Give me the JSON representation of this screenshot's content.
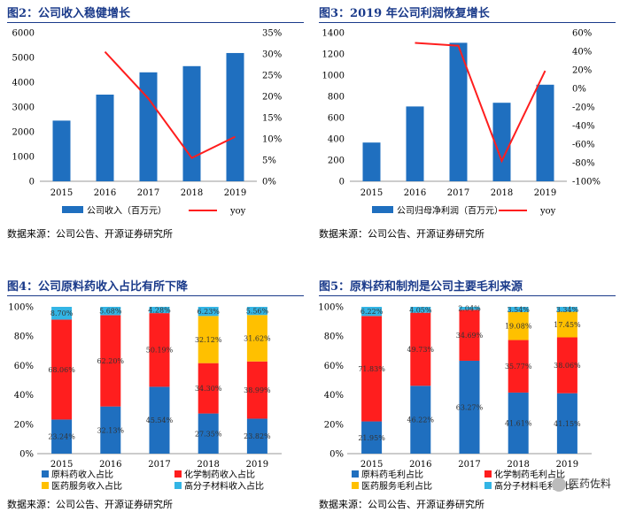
{
  "panels": [
    {
      "title": "图2：公司收入稳健增长",
      "source": "数据来源：公司公告、开源证券研究所"
    },
    {
      "title": "图3：2019 年公司利润恢复增长",
      "source": "数据来源：公司公告、开源证券研究所"
    },
    {
      "title": "图4：公司原料药收入占比有所下降",
      "source": "数据来源：公司公告、开源证券研究所"
    },
    {
      "title": "图5：原料药和制剂是公司主要毛利来源",
      "source": "数据来源：公司公告、开源证券研究所"
    }
  ],
  "watermark": "医药佐料",
  "colors": {
    "blue": "#1f6fbf",
    "red": "#ff1e1e",
    "yellow": "#ffc000",
    "cyan": "#33b5e5"
  },
  "chart_data": [
    {
      "type": "bar",
      "categories": [
        "2015",
        "2016",
        "2017",
        "2018",
        "2019"
      ],
      "series": [
        {
          "name": "公司收入（百万元）",
          "values": [
            2450,
            3500,
            4400,
            4650,
            5180
          ],
          "axis": "left",
          "kind": "bar"
        },
        {
          "name": "yoy",
          "values": [
            null,
            30.5,
            19.5,
            5.5,
            10.5
          ],
          "axis": "right",
          "kind": "line"
        }
      ],
      "y_left": {
        "ticks": [
          "0",
          "1000",
          "2000",
          "3000",
          "4000",
          "5000",
          "6000"
        ],
        "lim": [
          0,
          6000
        ]
      },
      "y_right": {
        "ticks": [
          "0%",
          "5%",
          "10%",
          "15%",
          "20%",
          "25%",
          "30%",
          "35%"
        ],
        "lim": [
          0,
          35
        ]
      },
      "legend": [
        "公司收入（百万元）",
        "yoy"
      ]
    },
    {
      "type": "bar",
      "categories": [
        "2015",
        "2016",
        "2017",
        "2018",
        "2019"
      ],
      "series": [
        {
          "name": "公司归母净利润（百万元）",
          "values": [
            365,
            705,
            1305,
            740,
            910
          ],
          "axis": "left",
          "kind": "bar"
        },
        {
          "name": "yoy",
          "values": [
            null,
            49,
            46,
            -78,
            19
          ],
          "axis": "right",
          "kind": "line"
        }
      ],
      "y_left": {
        "ticks": [
          "0",
          "200",
          "400",
          "600",
          "800",
          "1000",
          "1200",
          "1400"
        ],
        "lim": [
          0,
          1400
        ]
      },
      "y_right": {
        "ticks": [
          "-100%",
          "-80%",
          "-60%",
          "-40%",
          "-20%",
          "0%",
          "20%",
          "40%",
          "60%"
        ],
        "lim": [
          -100,
          60
        ]
      },
      "legend": [
        "公司归母净利润（百万元）",
        "yoy"
      ]
    },
    {
      "type": "stacked-bar",
      "categories": [
        "2015",
        "2016",
        "2017",
        "2018",
        "2019"
      ],
      "series": [
        {
          "name": "原料药收入占比",
          "color": "blue",
          "values": [
            23.24,
            32.13,
            45.54,
            27.35,
            23.82
          ],
          "labels": [
            "23.24%",
            "32.13%",
            "45.54%",
            "27.35%",
            "23.82%"
          ]
        },
        {
          "name": "化学制药收入占比",
          "color": "red",
          "values": [
            68.06,
            62.2,
            50.19,
            34.3,
            38.99
          ],
          "labels": [
            "68.06%",
            "62.20%",
            "50.19%",
            "34.30%",
            "38.99%"
          ]
        },
        {
          "name": "医药服务收入占比",
          "color": "yellow",
          "values": [
            0,
            0,
            0,
            32.12,
            31.62
          ],
          "labels": [
            "",
            "",
            "",
            "32.12%",
            "31.62%"
          ]
        },
        {
          "name": "高分子材料收入占比",
          "color": "cyan",
          "values": [
            8.7,
            5.68,
            4.28,
            6.23,
            5.56
          ],
          "labels": [
            "8.70%",
            "5.68%",
            "4.28%",
            "6.23%",
            "5.56%"
          ]
        }
      ],
      "y_ticks": [
        "0%",
        "20%",
        "40%",
        "60%",
        "80%",
        "100%"
      ],
      "ylim": [
        0,
        100
      ]
    },
    {
      "type": "stacked-bar",
      "categories": [
        "2015",
        "2016",
        "2017",
        "2018",
        "2019"
      ],
      "series": [
        {
          "name": "原料药毛利占比",
          "color": "blue",
          "values": [
            21.95,
            46.22,
            63.27,
            41.61,
            41.15
          ],
          "labels": [
            "21.95%",
            "46.22%",
            "63.27%",
            "41.61%",
            "41.15%"
          ]
        },
        {
          "name": "化学制药毛利占比",
          "color": "red",
          "values": [
            71.83,
            49.73,
            34.69,
            35.77,
            38.06
          ],
          "labels": [
            "71.83%",
            "49.73%",
            "34.69%",
            "35.77%",
            "38.06%"
          ]
        },
        {
          "name": "医药服务毛利占比",
          "color": "yellow",
          "values": [
            0,
            0,
            0,
            19.08,
            17.45
          ],
          "labels": [
            "",
            "",
            "",
            "19.08%",
            "17.45%"
          ]
        },
        {
          "name": "高分子材料毛利占比",
          "color": "cyan",
          "values": [
            6.22,
            4.05,
            2.04,
            3.54,
            3.34
          ],
          "labels": [
            "6.22%",
            "4.05%",
            "2.04%",
            "3.54%",
            "3.34%"
          ]
        }
      ],
      "y_ticks": [
        "0%",
        "20%",
        "40%",
        "60%",
        "80%",
        "100%"
      ],
      "ylim": [
        0,
        100
      ]
    }
  ]
}
